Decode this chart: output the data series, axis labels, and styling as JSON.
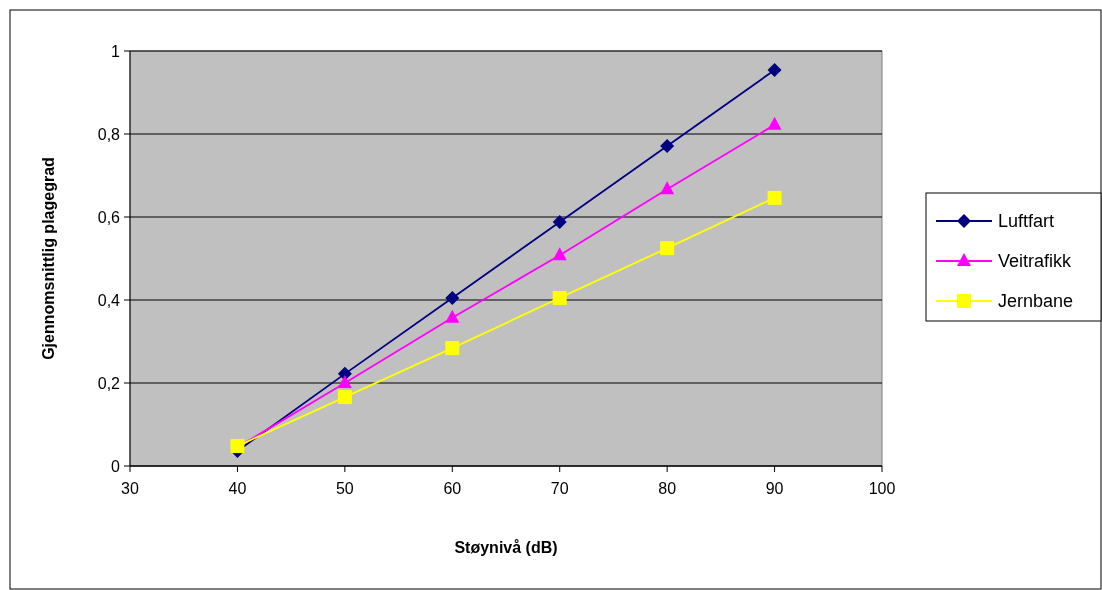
{
  "chart_data": {
    "type": "line",
    "xlabel": "Støynivå (dB)",
    "ylabel": "Gjennomsnittlig plagegrad",
    "x": [
      40,
      50,
      60,
      70,
      80,
      90
    ],
    "series": [
      {
        "name": "Luftfart",
        "color": "#000080",
        "marker": "diamond",
        "values": [
          0.036,
          0.222,
          0.405,
          0.588,
          0.771,
          0.954
        ]
      },
      {
        "name": "Veitrafikk",
        "color": "#ff00ff",
        "marker": "triangle",
        "values": [
          0.045,
          0.2,
          0.357,
          0.508,
          0.667,
          0.822
        ]
      },
      {
        "name": "Jernbane",
        "color": "#ffff00",
        "marker": "square",
        "values": [
          0.048,
          0.166,
          0.284,
          0.405,
          0.525,
          0.646
        ]
      }
    ],
    "xlim": [
      30,
      100
    ],
    "xticks": [
      30,
      40,
      50,
      60,
      70,
      80,
      90,
      100
    ],
    "ylim": [
      0,
      1
    ],
    "yticks": [
      {
        "value": 0,
        "label": "0"
      },
      {
        "value": 0.2,
        "label": "0,2"
      },
      {
        "value": 0.4,
        "label": "0,4"
      },
      {
        "value": 0.6,
        "label": "0,6"
      },
      {
        "value": 0.8,
        "label": "0,8"
      },
      {
        "value": 1,
        "label": "1"
      }
    ],
    "grid": "y",
    "legend": "right",
    "line_style": "solid"
  }
}
